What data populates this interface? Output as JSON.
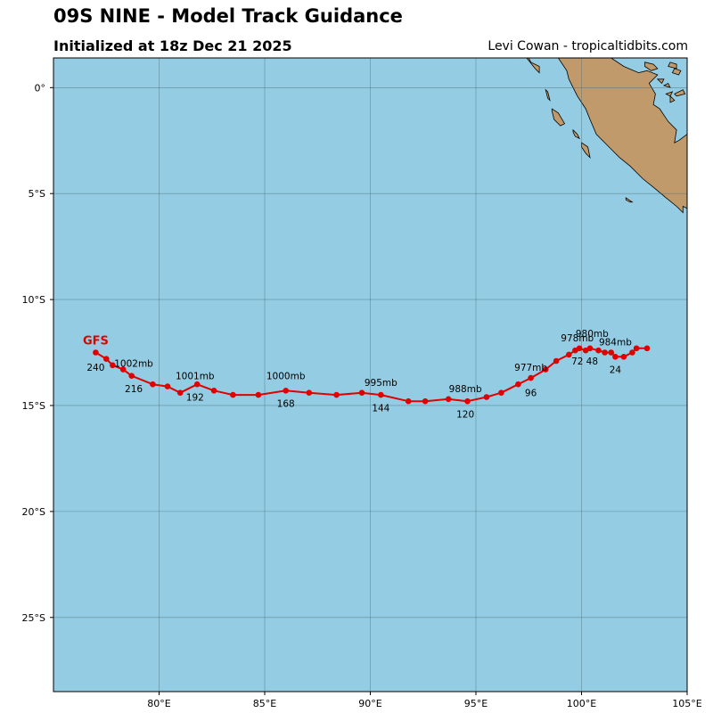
{
  "header": {
    "title": "09S NINE - Model Track Guidance",
    "subtitle": "Initialized at 18z Dec 21 2025",
    "credit": "Levi Cowan - tropicaltidbits.com"
  },
  "map": {
    "lon_range": [
      75,
      105
    ],
    "lat_range": [
      -28.5,
      1.4
    ],
    "ocean_color": "#94cde3",
    "land_color": "#c19a6b",
    "grid_color": "#4a6e7a",
    "lon_ticks": [
      {
        "value": 80,
        "label": "80°E"
      },
      {
        "value": 85,
        "label": "85°E"
      },
      {
        "value": 90,
        "label": "90°E"
      },
      {
        "value": 95,
        "label": "95°E"
      },
      {
        "value": 100,
        "label": "100°E"
      },
      {
        "value": 105,
        "label": "105°E"
      }
    ],
    "lat_ticks": [
      {
        "value": 0,
        "label": "0°"
      },
      {
        "value": -5,
        "label": "5°S"
      },
      {
        "value": -10,
        "label": "10°S"
      },
      {
        "value": -15,
        "label": "15°S"
      },
      {
        "value": -20,
        "label": "20°S"
      },
      {
        "value": -25,
        "label": "25°S"
      }
    ]
  },
  "track": {
    "model": "GFS",
    "color": "#e00000",
    "points": [
      [
        103.1,
        -12.3
      ],
      [
        102.6,
        -12.3
      ],
      [
        102.4,
        -12.5
      ],
      [
        102.0,
        -12.7
      ],
      [
        101.6,
        -12.7
      ],
      [
        101.4,
        -12.5
      ],
      [
        101.1,
        -12.5
      ],
      [
        100.8,
        -12.4
      ],
      [
        100.4,
        -12.3
      ],
      [
        100.2,
        -12.4
      ],
      [
        99.9,
        -12.3
      ],
      [
        99.7,
        -12.4
      ],
      [
        99.4,
        -12.6
      ],
      [
        98.8,
        -12.9
      ],
      [
        98.3,
        -13.3
      ],
      [
        97.6,
        -13.7
      ],
      [
        97.0,
        -14.0
      ],
      [
        96.2,
        -14.4
      ],
      [
        95.5,
        -14.6
      ],
      [
        94.6,
        -14.8
      ],
      [
        93.7,
        -14.7
      ],
      [
        92.6,
        -14.8
      ],
      [
        91.8,
        -14.8
      ],
      [
        90.5,
        -14.5
      ],
      [
        89.6,
        -14.4
      ],
      [
        88.4,
        -14.5
      ],
      [
        87.1,
        -14.4
      ],
      [
        86.0,
        -14.3
      ],
      [
        84.7,
        -14.5
      ],
      [
        83.5,
        -14.5
      ],
      [
        82.6,
        -14.3
      ],
      [
        81.8,
        -14.0
      ],
      [
        81.0,
        -14.4
      ],
      [
        80.4,
        -14.1
      ],
      [
        79.7,
        -14.0
      ],
      [
        78.7,
        -13.6
      ],
      [
        78.3,
        -13.3
      ],
      [
        77.8,
        -13.1
      ],
      [
        77.5,
        -12.8
      ],
      [
        77.0,
        -12.5
      ]
    ],
    "model_label": {
      "lon": 77.0,
      "lat": -11.9
    },
    "hour_labels": [
      {
        "text": "24",
        "lon": 101.6,
        "lat": -13.3
      },
      {
        "text": "48",
        "lon": 100.5,
        "lat": -12.9
      },
      {
        "text": "72",
        "lon": 99.8,
        "lat": -12.9
      },
      {
        "text": "96",
        "lon": 97.6,
        "lat": -14.4
      },
      {
        "text": "120",
        "lon": 94.5,
        "lat": -15.4
      },
      {
        "text": "144",
        "lon": 90.5,
        "lat": -15.1
      },
      {
        "text": "168",
        "lon": 86.0,
        "lat": -14.9
      },
      {
        "text": "192",
        "lon": 81.7,
        "lat": -14.6
      },
      {
        "text": "216",
        "lon": 78.8,
        "lat": -14.2
      },
      {
        "text": "240",
        "lon": 77.0,
        "lat": -13.2
      }
    ],
    "pressure_labels": [
      {
        "text": "984mb",
        "lon": 101.6,
        "lat": -12.0
      },
      {
        "text": "980mb",
        "lon": 100.5,
        "lat": -11.6
      },
      {
        "text": "978mb",
        "lon": 99.8,
        "lat": -11.8
      },
      {
        "text": "977mb",
        "lon": 97.6,
        "lat": -13.2
      },
      {
        "text": "988mb",
        "lon": 94.5,
        "lat": -14.2
      },
      {
        "text": "995mb",
        "lon": 90.5,
        "lat": -13.9
      },
      {
        "text": "1000mb",
        "lon": 86.0,
        "lat": -13.6
      },
      {
        "text": "1001mb",
        "lon": 81.7,
        "lat": -13.6
      },
      {
        "text": "1002mb",
        "lon": 78.8,
        "lat": -13.0
      }
    ]
  },
  "land_polygons": [
    [
      [
        98.9,
        1.4
      ],
      [
        99.3,
        0.8
      ],
      [
        99.4,
        0.4
      ],
      [
        99.8,
        -0.4
      ],
      [
        100.2,
        -1.0
      ],
      [
        100.4,
        -1.5
      ],
      [
        100.7,
        -2.2
      ],
      [
        101.2,
        -2.7
      ],
      [
        101.5,
        -3.0
      ],
      [
        101.8,
        -3.3
      ],
      [
        102.3,
        -3.7
      ],
      [
        102.9,
        -4.3
      ],
      [
        103.4,
        -4.7
      ],
      [
        104.0,
        -5.2
      ],
      [
        104.5,
        -5.6
      ],
      [
        104.8,
        -5.9
      ],
      [
        104.8,
        -5.6
      ],
      [
        105.0,
        -5.7
      ],
      [
        105.0,
        -2.2
      ],
      [
        104.6,
        -2.5
      ],
      [
        104.4,
        -2.6
      ],
      [
        104.5,
        -2.0
      ],
      [
        104.1,
        -1.6
      ],
      [
        103.7,
        -1.0
      ],
      [
        103.4,
        -0.8
      ],
      [
        103.5,
        -0.3
      ],
      [
        103.2,
        0.2
      ],
      [
        103.6,
        0.6
      ],
      [
        103.1,
        0.8
      ],
      [
        102.7,
        0.7
      ],
      [
        102.0,
        1.0
      ],
      [
        101.4,
        1.4
      ]
    ],
    [
      [
        97.4,
        1.4
      ],
      [
        97.8,
        0.9
      ],
      [
        98.0,
        0.7
      ],
      [
        98.0,
        1.0
      ],
      [
        97.6,
        1.2
      ],
      [
        97.5,
        1.4
      ]
    ],
    [
      [
        98.3,
        -0.1
      ],
      [
        98.4,
        -0.5
      ],
      [
        98.5,
        -0.6
      ],
      [
        98.4,
        -0.2
      ]
    ],
    [
      [
        98.6,
        -1.0
      ],
      [
        98.9,
        -1.2
      ],
      [
        99.2,
        -1.7
      ],
      [
        99.0,
        -1.8
      ],
      [
        98.7,
        -1.5
      ],
      [
        98.6,
        -1.1
      ]
    ],
    [
      [
        99.6,
        -2.0
      ],
      [
        99.8,
        -2.2
      ],
      [
        99.9,
        -2.4
      ],
      [
        99.7,
        -2.3
      ],
      [
        99.6,
        -2.1
      ]
    ],
    [
      [
        100.0,
        -2.6
      ],
      [
        100.3,
        -2.8
      ],
      [
        100.4,
        -3.3
      ],
      [
        100.2,
        -3.1
      ],
      [
        100.0,
        -2.8
      ]
    ],
    [
      [
        102.1,
        -5.2
      ],
      [
        102.4,
        -5.4
      ],
      [
        102.3,
        -5.4
      ],
      [
        102.1,
        -5.3
      ]
    ],
    [
      [
        103.0,
        1.2
      ],
      [
        103.4,
        1.1
      ],
      [
        103.6,
        0.9
      ],
      [
        103.3,
        0.8
      ],
      [
        103.0,
        1.0
      ]
    ],
    [
      [
        104.1,
        1.0
      ],
      [
        104.5,
        0.9
      ],
      [
        104.5,
        1.1
      ],
      [
        104.2,
        1.2
      ]
    ],
    [
      [
        103.9,
        0.1
      ],
      [
        104.2,
        0.0
      ],
      [
        104.1,
        0.2
      ]
    ],
    [
      [
        104.0,
        -0.3
      ],
      [
        104.3,
        -0.2
      ],
      [
        104.2,
        -0.4
      ]
    ],
    [
      [
        104.4,
        -0.3
      ],
      [
        104.8,
        -0.1
      ],
      [
        104.9,
        -0.3
      ],
      [
        104.5,
        -0.4
      ]
    ],
    [
      [
        104.2,
        -0.4
      ],
      [
        104.4,
        -0.6
      ],
      [
        104.2,
        -0.7
      ]
    ],
    [
      [
        104.3,
        0.7
      ],
      [
        104.6,
        0.6
      ],
      [
        104.7,
        0.8
      ],
      [
        104.4,
        0.9
      ]
    ],
    [
      [
        103.6,
        0.4
      ],
      [
        103.8,
        0.2
      ],
      [
        103.9,
        0.4
      ]
    ]
  ]
}
